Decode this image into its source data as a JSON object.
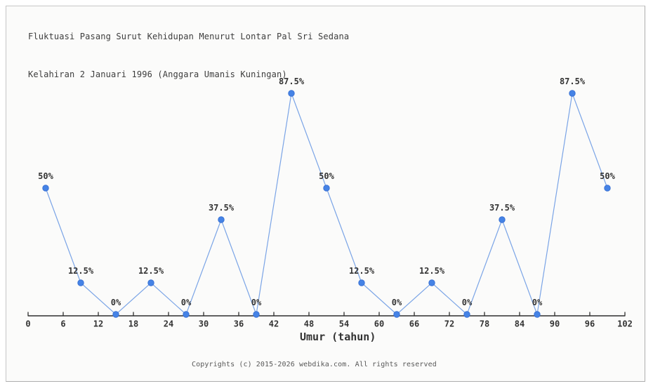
{
  "chart": {
    "title_line1": "Fluktuasi Pasang Surut Kehidupan Menurut Lontar Pal Sri Sedana",
    "title_line2": "Kelahiran 2 Januari 1996 (Anggara Umanis Kuningan)"
  },
  "chart_data": {
    "type": "line",
    "title": "Fluktuasi Pasang Surut Kehidupan Menurut Lontar Pal Sri Sedana Kelahiran 2 Januari 1996 (Anggara Umanis Kuningan)",
    "xlabel": "Umur (tahun)",
    "ylabel": "",
    "x": [
      3,
      9,
      15,
      21,
      27,
      33,
      39,
      45,
      51,
      57,
      63,
      69,
      75,
      81,
      87,
      93,
      99
    ],
    "values": [
      50,
      12.5,
      0,
      12.5,
      0,
      37.5,
      0,
      87.5,
      50,
      12.5,
      0,
      12.5,
      0,
      37.5,
      0,
      87.5,
      50
    ],
    "point_labels": [
      "50%",
      "12.5%",
      "0%",
      "12.5%",
      "0%",
      "37.5%",
      "0%",
      "87.5%",
      "50%",
      "12.5%",
      "0%",
      "12.5%",
      "0%",
      "37.5%",
      "0%",
      "87.5%",
      "50%"
    ],
    "xticks": [
      0,
      6,
      12,
      18,
      24,
      30,
      36,
      42,
      48,
      54,
      60,
      66,
      72,
      78,
      84,
      90,
      96,
      102
    ],
    "xlim": [
      0,
      102
    ],
    "ylim": [
      0,
      100
    ],
    "grid": false,
    "legend": null,
    "colors": {
      "marker": "#4583e6",
      "marker_edge": "#3a72d4",
      "line": "#7aa4e6",
      "axis": "#2e2e2e",
      "tick_label": "#333333",
      "point_label": "#333333"
    }
  },
  "footer": {
    "copyright": "Copyrights (c) 2015-2026 webdika.com. All rights reserved"
  }
}
